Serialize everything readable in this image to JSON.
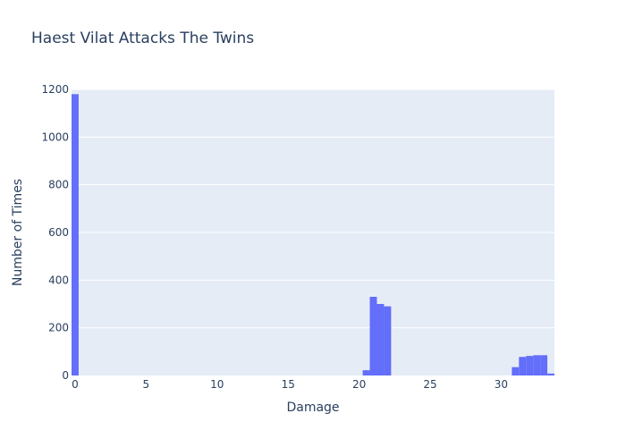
{
  "chart_data": {
    "type": "bar",
    "title": "Haest Vilat Attacks The Twins",
    "xlabel": "Damage",
    "ylabel": "Number of Times",
    "xlim": [
      -0.25,
      33.75
    ],
    "ylim": [
      0,
      1200
    ],
    "x_ticks": [
      0,
      5,
      10,
      15,
      20,
      25,
      30
    ],
    "y_ticks": [
      0,
      200,
      400,
      600,
      800,
      1000,
      1200
    ],
    "grid": true,
    "bar_width": 0.5,
    "bar_color": "#636efa",
    "plot_bg_color": "#e5ecf6",
    "x": [
      0,
      20.5,
      21,
      21.5,
      22,
      31,
      31.5,
      32,
      32.5,
      33,
      33.5
    ],
    "values": [
      1180,
      22,
      330,
      300,
      290,
      35,
      78,
      82,
      85,
      85,
      8
    ]
  }
}
